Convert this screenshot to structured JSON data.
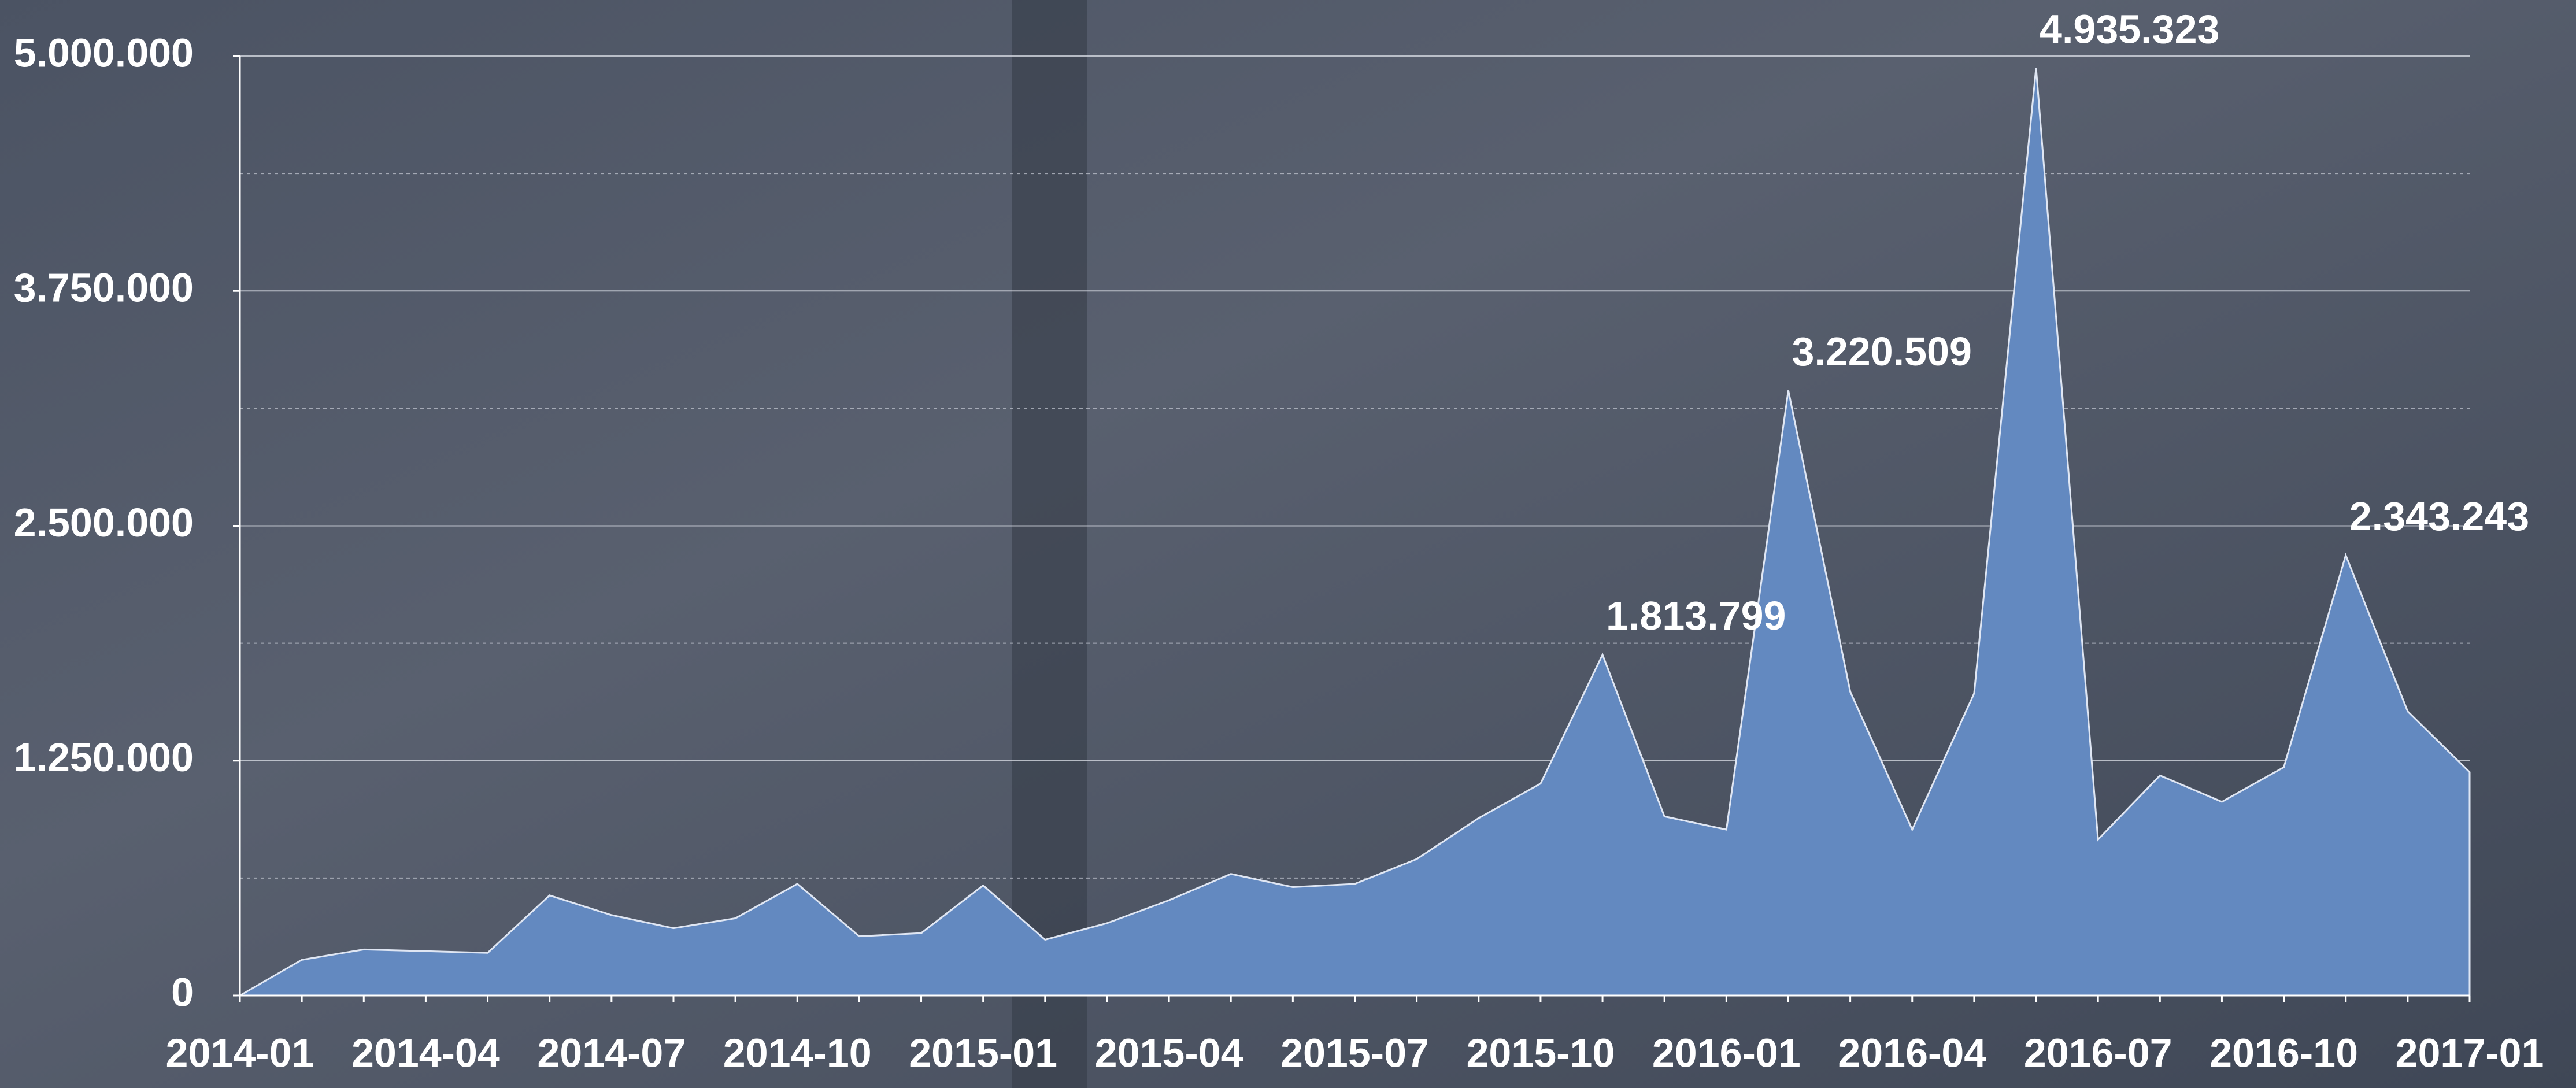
{
  "chart_data": {
    "type": "area",
    "categories": [
      "2014-01",
      null,
      null,
      "2014-04",
      null,
      null,
      "2014-07",
      null,
      null,
      "2014-10",
      null,
      null,
      "2015-01",
      null,
      null,
      "2015-04",
      null,
      null,
      "2015-07",
      null,
      null,
      "2015-10",
      null,
      null,
      "2016-01",
      null,
      null,
      "2016-04",
      null,
      null,
      "2016-07",
      null,
      null,
      "2016-10",
      null,
      null,
      "2017-01"
    ],
    "values": [
      0,
      190000,
      245000,
      236000,
      227000,
      533000,
      428000,
      358000,
      411000,
      594000,
      315000,
      332000,
      586000,
      297000,
      385000,
      507000,
      647000,
      577000,
      594000,
      726000,
      944000,
      1128000,
      1813799,
      953000,
      883000,
      3220509,
      1617000,
      883000,
      1608000,
      4935323,
      830000,
      1171000,
      1031000,
      1215000,
      2343243,
      1512000,
      1189000
    ],
    "value_labels": [
      null,
      null,
      null,
      null,
      null,
      null,
      null,
      null,
      null,
      null,
      null,
      null,
      null,
      null,
      null,
      null,
      null,
      null,
      null,
      null,
      null,
      null,
      "1.813.799",
      null,
      null,
      "3.220.509",
      null,
      null,
      null,
      "4.935.323",
      null,
      null,
      null,
      null,
      "2.343.243",
      null,
      null
    ],
    "color": "#6389c0",
    "ylim": [
      0,
      5000000
    ],
    "yticks": [
      0,
      {
        "value": 1250000,
        "label": "1.250.000"
      },
      {
        "value": 2500000,
        "label": "2.500.000"
      },
      {
        "value": 3750000,
        "label": "3.750.000"
      },
      {
        "value": 5000000,
        "label": "5.000.000"
      }
    ],
    "yticks_minor": [
      625000,
      1875000,
      3125000,
      4375000
    ],
    "grid": true
  }
}
